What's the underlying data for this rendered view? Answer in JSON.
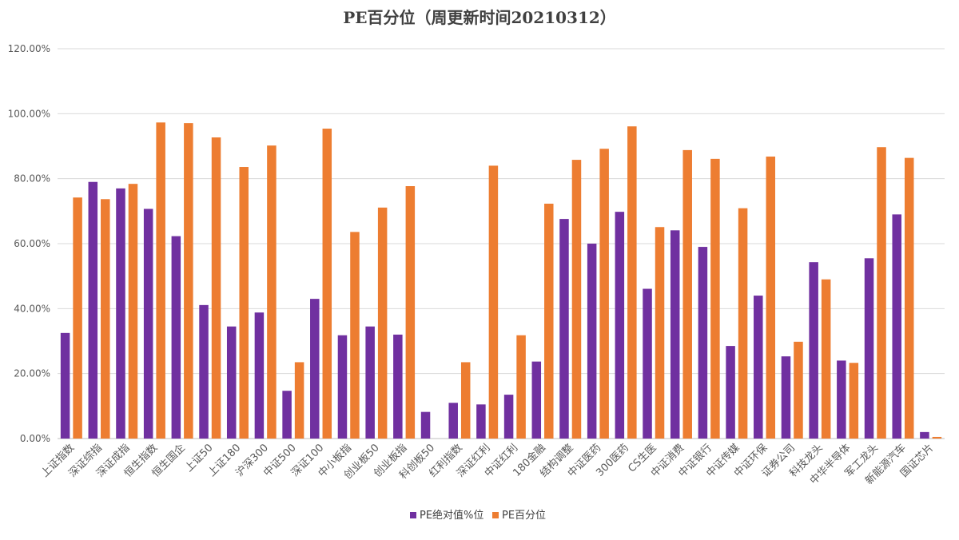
{
  "chart_data": {
    "type": "bar",
    "title": "PE百分位（周更新时间20210312）",
    "xlabel": "",
    "ylabel": "",
    "ylim": [
      0,
      1.2
    ],
    "y_ticks": [
      0,
      0.2,
      0.4,
      0.6,
      0.8,
      1.0,
      1.2
    ],
    "y_tick_labels": [
      "0.00%",
      "20.00%",
      "40.00%",
      "60.00%",
      "80.00%",
      "100.00%",
      "120.00%"
    ],
    "grid": true,
    "legend_position": "bottom",
    "categories": [
      "上证指数",
      "深证综指",
      "深证成指",
      "恒生指数",
      "恒生国企",
      "上证50",
      "上证180",
      "沪深300",
      "中证500",
      "深证100",
      "中小板指",
      "创业板50",
      "创业板指",
      "科创板50",
      "红利指数",
      "深证红利",
      "中证红利",
      "180金融",
      "结构调整",
      "中证医药",
      "300医药",
      "CS生医",
      "中证消费",
      "中证银行",
      "中证传媒",
      "中证环保",
      "证券公司",
      "科技龙头",
      "中华半导体",
      "军工龙头",
      "新能源汽车",
      "国证芯片"
    ],
    "series": [
      {
        "name": "PE绝对值%位",
        "color": "#7030a0",
        "values": [
          0.325,
          0.79,
          0.77,
          0.707,
          0.623,
          0.411,
          0.345,
          0.388,
          0.147,
          0.43,
          0.318,
          0.345,
          0.32,
          0.082,
          0.11,
          0.105,
          0.135,
          0.237,
          0.676,
          0.6,
          0.698,
          0.461,
          0.641,
          0.59,
          0.285,
          0.44,
          0.253,
          0.543,
          0.24,
          0.555,
          0.69,
          0.02
        ]
      },
      {
        "name": "PE百分位",
        "color": "#ed7d31",
        "values": [
          0.742,
          0.737,
          0.784,
          0.973,
          0.971,
          0.927,
          0.836,
          0.902,
          0.235,
          0.954,
          0.636,
          0.711,
          0.777,
          0.0,
          0.235,
          0.84,
          0.318,
          0.723,
          0.858,
          0.892,
          0.961,
          0.651,
          0.888,
          0.861,
          0.709,
          0.868,
          0.298,
          0.49,
          0.233,
          0.897,
          0.864,
          0.005
        ]
      }
    ]
  }
}
